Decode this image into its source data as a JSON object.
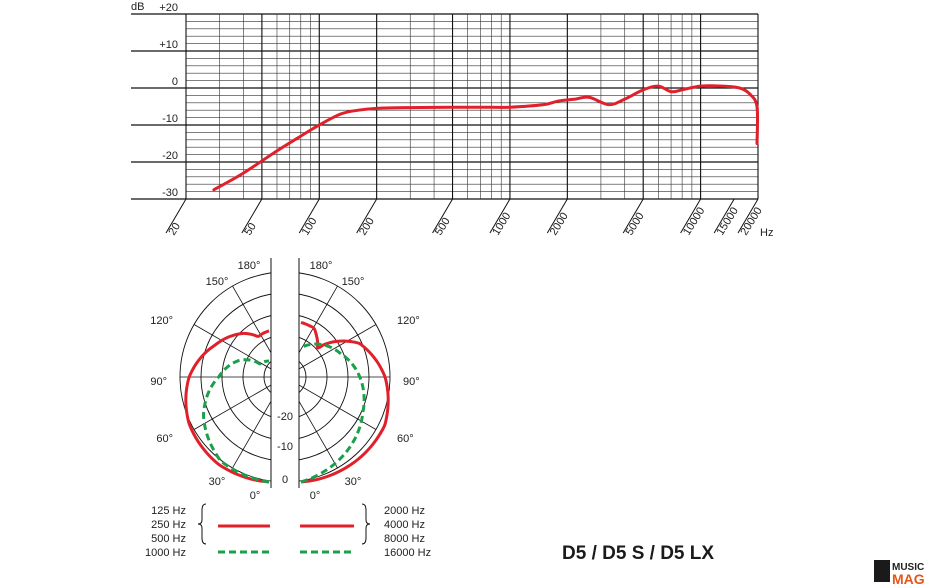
{
  "chart_data": [
    {
      "type": "line",
      "title": "",
      "xlabel": "",
      "ylabel": "",
      "y_unit": "dB",
      "x_unit": "Hz",
      "x_scale": "log",
      "xlim": [
        20,
        20000
      ],
      "ylim": [
        -30,
        20
      ],
      "y_ticks": [
        "+20",
        "+10",
        "0",
        "-10",
        "-20",
        "-30"
      ],
      "x_ticks": [
        "20",
        "50",
        "100",
        "200",
        "500",
        "1000",
        "2000",
        "5000",
        "10000",
        "15000",
        "20000"
      ],
      "grid": true,
      "color": "#e0202a",
      "series": [
        {
          "x": [
            28,
            40,
            60,
            80,
            100,
            130,
            160,
            200,
            300,
            500,
            800,
            1000,
            1500,
            1800,
            2200,
            2600,
            3300,
            4000,
            5000,
            6000,
            7000,
            8000,
            10000,
            13000,
            16000,
            18000,
            20000,
            22000
          ],
          "y": [
            -27.5,
            -23,
            -17,
            -13,
            -10,
            -7,
            -6,
            -5.5,
            -5.3,
            -5.2,
            -5.2,
            -5.2,
            -4.5,
            -3.5,
            -3,
            -2.5,
            -4.5,
            -3,
            -0.5,
            0.5,
            -1,
            -0.5,
            0.5,
            0.5,
            0,
            -1.5,
            -5,
            -15
          ]
        }
      ]
    },
    {
      "type": "polar",
      "title": "",
      "angle_ticks": [
        "180°",
        "150°",
        "120°",
        "90°",
        "60°",
        "30°",
        "0°"
      ],
      "radial_ticks": [
        "-20",
        "-10",
        "0"
      ],
      "series": [
        {
          "name": "125 Hz / 250 Hz / 500 Hz",
          "style": "solid",
          "color": "#e0202a",
          "angles_deg": [
            0,
            30,
            60,
            90,
            120,
            150,
            165,
            180
          ],
          "levels_db": [
            0,
            -1,
            -3,
            -6,
            -10,
            -13,
            -15,
            -14
          ]
        },
        {
          "name": "1000 Hz",
          "style": "dashed",
          "color": "#1aa04a",
          "angles_deg": [
            0,
            30,
            60,
            90,
            120,
            150,
            180
          ],
          "levels_db": [
            0,
            -2,
            -7,
            -13,
            -17,
            -22,
            -24
          ]
        },
        {
          "name": "2000 Hz / 4000 Hz / 8000 Hz",
          "style": "solid",
          "color": "#e0202a",
          "angles_deg": [
            0,
            30,
            60,
            90,
            120,
            150,
            165,
            180
          ],
          "levels_db": [
            0,
            -1,
            -2,
            -5,
            -9,
            -17,
            -13,
            -12
          ]
        },
        {
          "name": "16000 Hz",
          "style": "dashed",
          "color": "#1aa04a",
          "angles_deg": [
            0,
            30,
            60,
            90,
            120,
            150,
            180
          ],
          "levels_db": [
            0,
            -4,
            -8,
            -11,
            -14,
            -16,
            -18
          ]
        }
      ]
    }
  ],
  "legend": {
    "left": [
      "125 Hz",
      "250 Hz",
      "500 Hz",
      "1000 Hz"
    ],
    "right": [
      "2000 Hz",
      "4000 Hz",
      "8000 Hz",
      "16000 Hz"
    ]
  },
  "model_label": "D5 / D5 S / D5 LX",
  "watermark": {
    "line1": "MUSIC",
    "line2": "MAG"
  }
}
